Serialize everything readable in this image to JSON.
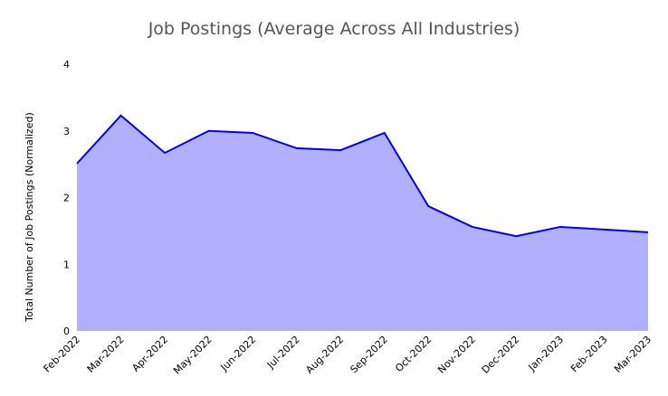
{
  "chart_data": {
    "type": "area",
    "title": "Job Postings (Average Across All Industries)",
    "y_label": "Total Number of Job Postings (Normalized)",
    "categories": [
      "Feb-2022",
      "Mar-2022",
      "Apr-2022",
      "May-2022",
      "Jun-2022",
      "Jul-2022",
      "Aug-2022",
      "Sep-2022",
      "Oct-2022",
      "Nov-2022",
      "Dec-2022",
      "Jan-2023",
      "Feb-2023",
      "Mar-2023"
    ],
    "values": [
      2.51,
      3.23,
      2.67,
      3.0,
      2.97,
      2.74,
      2.71,
      2.97,
      1.87,
      1.56,
      1.42,
      1.56,
      1.52,
      1.48
    ],
    "color": "#0000dd",
    "fill": "#b0b0ff",
    "ylim": [
      0,
      4
    ],
    "yticks": [
      0,
      1,
      2,
      3,
      4
    ],
    "grid": false
  }
}
